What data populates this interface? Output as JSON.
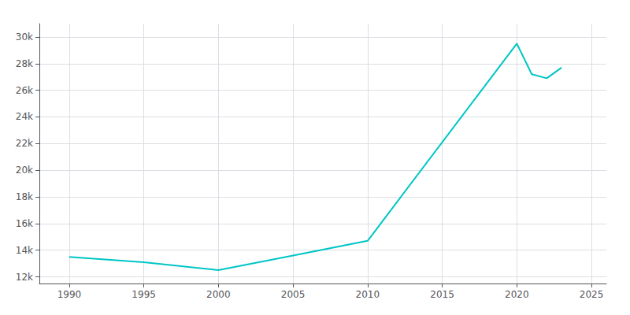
{
  "chart_data": {
    "type": "line",
    "x": [
      1990,
      1995,
      2000,
      2005,
      2010,
      2020,
      2021,
      2022,
      2023
    ],
    "values": [
      13500,
      13100,
      12500,
      13600,
      14700,
      29500,
      27200,
      26900,
      27700
    ],
    "color": "#00C5C5",
    "xlim": [
      1988,
      2026
    ],
    "xticks": [
      1990,
      1995,
      2000,
      2005,
      2010,
      2015,
      2020,
      2025
    ],
    "ylim": [
      11500,
      31000
    ],
    "yticks": [
      {
        "value": 12000,
        "label": "12k"
      },
      {
        "value": 14000,
        "label": "14k"
      },
      {
        "value": 16000,
        "label": "16k"
      },
      {
        "value": 18000,
        "label": "18k"
      },
      {
        "value": 20000,
        "label": "20k"
      },
      {
        "value": 22000,
        "label": "22k"
      },
      {
        "value": 24000,
        "label": "24k"
      },
      {
        "value": 26000,
        "label": "26k"
      },
      {
        "value": 28000,
        "label": "28k"
      },
      {
        "value": 30000,
        "label": "30k"
      }
    ],
    "grid": true
  }
}
